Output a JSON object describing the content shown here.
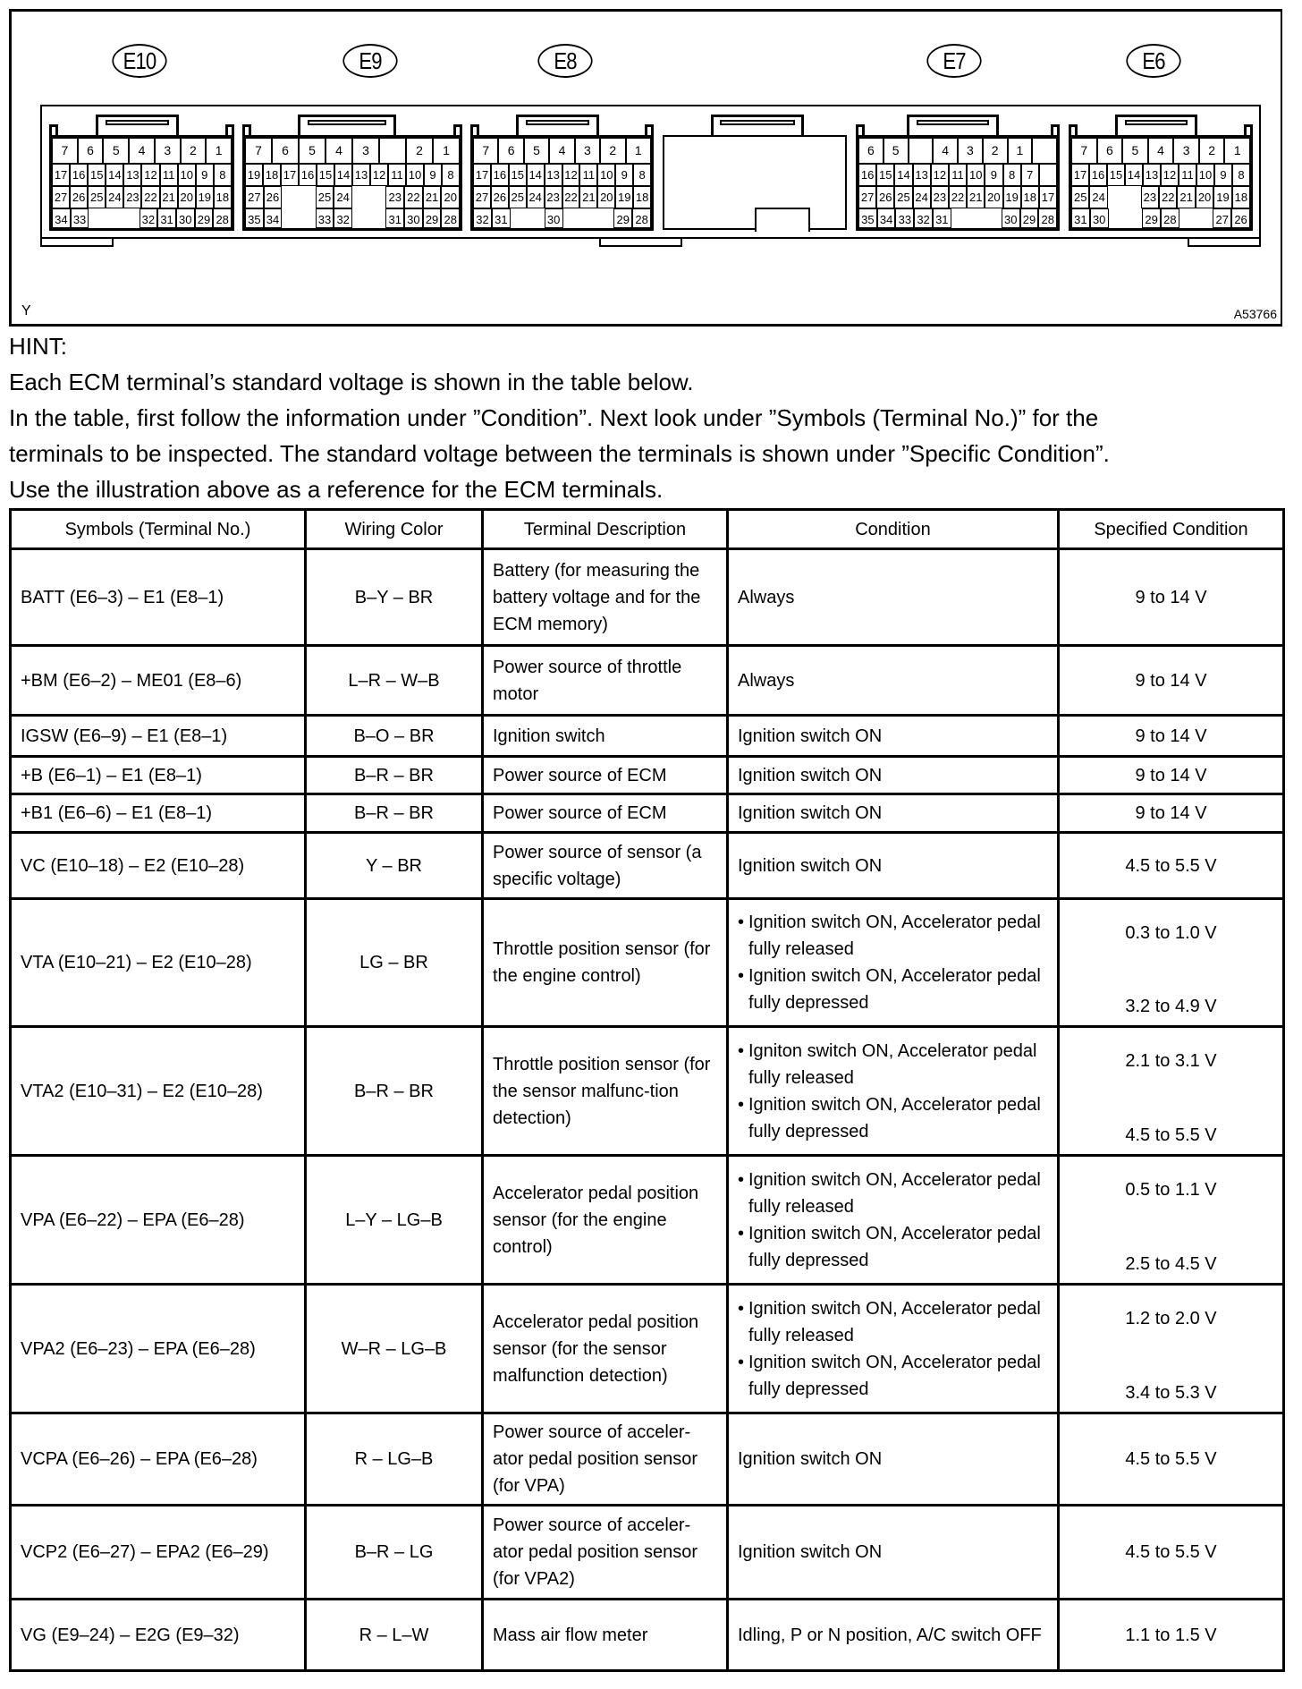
{
  "diagram": {
    "corner_label": "Y",
    "figure_id": "A53766",
    "connectors": [
      {
        "label": "E10",
        "rows": [
          [
            "7",
            "6",
            "5",
            "4",
            "3",
            "2",
            "1"
          ],
          [
            "17",
            "16",
            "15",
            "14",
            "13",
            "12",
            "11",
            "10",
            "9",
            "8"
          ],
          [
            "27",
            "26",
            "25",
            "24",
            "23",
            "22",
            "21",
            "20",
            "19",
            "18"
          ],
          [
            "34",
            "33",
            null,
            null,
            null,
            "32",
            "31",
            "30",
            "29",
            "28"
          ]
        ]
      },
      {
        "label": "E9",
        "rows": [
          [
            "7",
            "6",
            "5",
            "4",
            "3",
            "",
            "2",
            "1"
          ],
          [
            "19",
            "18",
            "17",
            "16",
            "15",
            "14",
            "13",
            "12",
            "11",
            "10",
            "9",
            "8"
          ],
          [
            "27",
            "26",
            null,
            null,
            "25",
            "24",
            null,
            null,
            "23",
            "22",
            "21",
            "20"
          ],
          [
            "35",
            "34",
            null,
            null,
            "33",
            "32",
            null,
            null,
            "31",
            "30",
            "29",
            "28"
          ]
        ]
      },
      {
        "label": "E8",
        "rows": [
          [
            "7",
            "6",
            "5",
            "4",
            "3",
            "2",
            "1"
          ],
          [
            "17",
            "16",
            "15",
            "14",
            "13",
            "12",
            "11",
            "10",
            "9",
            "8"
          ],
          [
            "27",
            "26",
            "25",
            "24",
            "23",
            "22",
            "21",
            "20",
            "19",
            "18"
          ],
          [
            "32",
            "31",
            null,
            null,
            "30",
            null,
            null,
            null,
            "29",
            "28"
          ]
        ]
      },
      {
        "label": "E7",
        "rows": [
          [
            "6",
            "5",
            "",
            "4",
            "3",
            "2",
            "1",
            ""
          ],
          [
            "16",
            "15",
            "14",
            "13",
            "12",
            "11",
            "10",
            "9",
            "8",
            "7",
            ""
          ],
          [
            "27",
            "26",
            "25",
            "24",
            "23",
            "22",
            "21",
            "20",
            "19",
            "18",
            "17"
          ],
          [
            "35",
            "34",
            "33",
            "32",
            "31",
            null,
            null,
            null,
            "30",
            "29",
            "28"
          ]
        ]
      },
      {
        "label": "E6",
        "rows": [
          [
            "7",
            "6",
            "5",
            "4",
            "3",
            "2",
            "1"
          ],
          [
            "17",
            "16",
            "15",
            "14",
            "13",
            "12",
            "11",
            "10",
            "9",
            "8"
          ],
          [
            "25",
            "24",
            null,
            null,
            "23",
            "22",
            "21",
            "20",
            "19",
            "18"
          ],
          [
            "31",
            "30",
            null,
            null,
            "29",
            "28",
            null,
            null,
            "27",
            "26"
          ]
        ]
      }
    ]
  },
  "hint": {
    "title": "HINT:",
    "lines": [
      "Each ECM terminal’s standard voltage is shown in the table below.",
      "In the table, first follow the information under ”Condition”. Next look under ”Symbols (Terminal No.)” for the",
      "terminals to be inspected. The standard voltage between the terminals is shown under ”Specific Condition”.",
      "Use the illustration above as a reference for the ECM terminals."
    ]
  },
  "table": {
    "headers": [
      "Symbols (Terminal No.)",
      "Wiring Color",
      "Terminal Description",
      "Condition",
      "Specified Condition"
    ],
    "rows": [
      {
        "symbols": "BATT (E6–3) – E1 (E8–1)",
        "wiring": "B–Y – BR",
        "description": "Battery (for measuring the battery voltage and for the ECM memory)",
        "condition": "Always",
        "specified": "9 to 14 V"
      },
      {
        "symbols": "+BM (E6–2) – ME01 (E8–6)",
        "wiring": "L–R – W–B",
        "description": "Power source of throttle motor",
        "condition": "Always",
        "specified": "9 to 14 V"
      },
      {
        "symbols": "IGSW (E6–9) – E1 (E8–1)",
        "wiring": "B–O – BR",
        "description": "Ignition switch",
        "condition": "Ignition switch ON",
        "specified": "9 to 14 V"
      },
      {
        "symbols": "+B (E6–1) – E1 (E8–1)",
        "wiring": "B–R – BR",
        "description": "Power source of ECM",
        "condition": "Ignition switch ON",
        "specified": "9 to 14 V"
      },
      {
        "symbols": "+B1 (E6–6) – E1 (E8–1)",
        "wiring": "B–R – BR",
        "description": "Power source of ECM",
        "condition": "Ignition switch ON",
        "specified": "9 to 14 V"
      },
      {
        "symbols": "VC (E10–18) – E2 (E10–28)",
        "wiring": "Y – BR",
        "description": "Power source of sensor (a specific voltage)",
        "condition": "Ignition switch ON",
        "specified": "4.5 to 5.5 V"
      },
      {
        "symbols": "VTA (E10–21) – E2 (E10–28)",
        "wiring": "LG – BR",
        "description": "Throttle position sensor (for the engine control)",
        "condition": [
          "Ignition switch ON, Accelerator pedal fully released",
          "Ignition switch ON, Accelerator pedal fully depressed"
        ],
        "specified": [
          "0.3 to 1.0 V",
          "3.2 to 4.9 V"
        ]
      },
      {
        "symbols": "VTA2 (E10–31) – E2 (E10–28)",
        "wiring": "B–R – BR",
        "description": "Throttle position sensor (for the sensor malfunc-tion detection)",
        "condition": [
          "Igniton switch ON, Accelerator pedal fully released",
          "Ignition switch ON, Accelerator pedal fully depressed"
        ],
        "specified": [
          "2.1 to 3.1 V",
          "4.5 to 5.5 V"
        ]
      },
      {
        "symbols": "VPA (E6–22) – EPA (E6–28)",
        "wiring": "L–Y – LG–B",
        "description": "Accelerator pedal position sensor (for the engine control)",
        "condition": [
          "Ignition switch ON, Accelerator pedal fully released",
          "Ignition switch ON, Accelerator pedal fully depressed"
        ],
        "specified": [
          "0.5 to 1.1 V",
          "2.5 to 4.5 V"
        ]
      },
      {
        "symbols": "VPA2 (E6–23) – EPA (E6–28)",
        "wiring": "W–R – LG–B",
        "description": "Accelerator pedal position sensor (for the sensor malfunction detection)",
        "condition": [
          "Ignition switch ON, Accelerator pedal fully released",
          "Ignition switch ON, Accelerator pedal fully depressed"
        ],
        "specified": [
          "1.2 to 2.0 V",
          "3.4 to 5.3 V"
        ]
      },
      {
        "symbols": "VCPA (E6–26) – EPA (E6–28)",
        "wiring": "R – LG–B",
        "description": "Power source of acceler-ator pedal position sensor (for VPA)",
        "condition": "Ignition switch ON",
        "specified": "4.5 to 5.5 V"
      },
      {
        "symbols": "VCP2 (E6–27) – EPA2 (E6–29)",
        "wiring": "B–R – LG",
        "description": "Power source of acceler-ator pedal position sensor (for VPA2)",
        "condition": "Ignition switch ON",
        "specified": "4.5 to 5.5 V"
      },
      {
        "symbols": "VG (E9–24) – E2G (E9–32)",
        "wiring": "R – L–W",
        "description": "Mass air flow meter",
        "condition": "Idling, P or N position, A/C switch OFF",
        "specified": "1.1 to 1.5 V"
      }
    ]
  }
}
